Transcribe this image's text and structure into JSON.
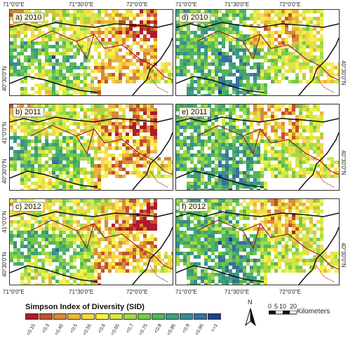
{
  "panels": [
    {
      "label": "a) 2010",
      "variant": "left",
      "year": 2010
    },
    {
      "label": "b) 2011",
      "variant": "left",
      "year": 2011
    },
    {
      "label": "c) 2012",
      "variant": "left",
      "year": 2012
    },
    {
      "label": "d) 2010",
      "variant": "right",
      "year": 2010
    },
    {
      "label": "e) 2011",
      "variant": "right",
      "year": 2011
    },
    {
      "label": "f) 2012",
      "variant": "right",
      "year": 2012
    }
  ],
  "lon_labels": [
    "71°0'0\"E",
    "71°30'0\"E",
    "72°0'0\"E"
  ],
  "lat_labels": [
    "41°0'0\"N",
    "40°30'0\"N"
  ],
  "legend": {
    "title": "Simpson Index of Diversity (SID)",
    "classes": [
      {
        "label": "<0.15",
        "color": "#b2182b"
      },
      {
        "label": "<0.3",
        "color": "#c1502a"
      },
      {
        "label": "<0.45",
        "color": "#d88a35"
      },
      {
        "label": "<0.5",
        "color": "#e9b540"
      },
      {
        "label": "<0.55",
        "color": "#f3d84a"
      },
      {
        "label": "<0.6",
        "color": "#f5f04a"
      },
      {
        "label": "<0.65",
        "color": "#d2e94a"
      },
      {
        "label": "<0.7",
        "color": "#a3d946"
      },
      {
        "label": "<0.75",
        "color": "#78c948"
      },
      {
        "label": "<0.8",
        "color": "#52b55e"
      },
      {
        "label": "<0.85",
        "color": "#3fa07a"
      },
      {
        "label": "<0.9",
        "color": "#3a8a90"
      },
      {
        "label": "<0.95",
        "color": "#3a6f9c"
      },
      {
        "label": "<=1",
        "color": "#1f3f8f"
      }
    ]
  },
  "north_label": "N",
  "scale": {
    "ticks": [
      "0",
      "5",
      "10",
      "20"
    ],
    "unit": "Kilometers"
  }
}
